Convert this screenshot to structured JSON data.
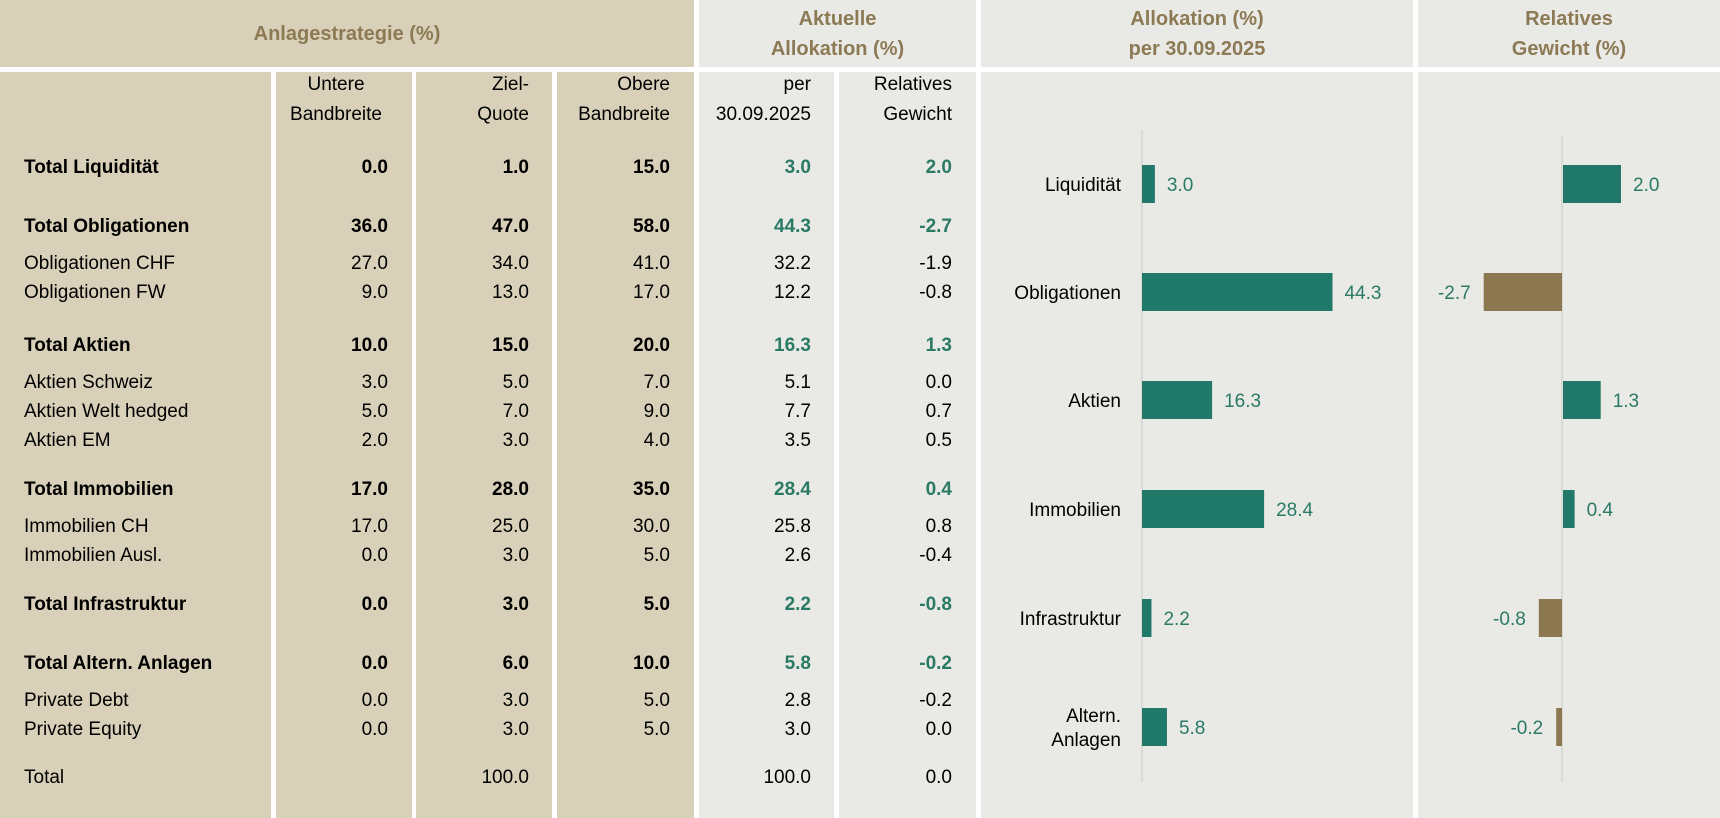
{
  "header": {
    "strategy_title": "Anlagestrategie (%)",
    "current_alloc_title_1": "Aktuelle",
    "current_alloc_title_2": "Allokation (%)",
    "alloc_chart_title_1": "Allokation (%)",
    "alloc_chart_title_2": "per 30.09.2025",
    "rel_chart_title_1": "Relatives",
    "rel_chart_title_2": "Gewicht (%)"
  },
  "columns": {
    "lower": [
      "Untere",
      "Bandbreite"
    ],
    "target": [
      "Ziel-",
      "Quote"
    ],
    "upper": [
      "Obere",
      "Bandbreite"
    ],
    "current": [
      "per",
      "30.09.2025"
    ],
    "relative": [
      "Relatives",
      "Gewicht"
    ]
  },
  "rows": [
    {
      "label": "Total Liquidität",
      "lower": "0.0",
      "target": "1.0",
      "upper": "15.0",
      "current": "3.0",
      "relative": "2.0",
      "total": true
    },
    {
      "label": "Total Obligationen",
      "lower": "36.0",
      "target": "47.0",
      "upper": "58.0",
      "current": "44.3",
      "relative": "-2.7",
      "total": true
    },
    {
      "label": "Obligationen CHF",
      "lower": "27.0",
      "target": "34.0",
      "upper": "41.0",
      "current": "32.2",
      "relative": "-1.9",
      "total": false
    },
    {
      "label": "Obligationen FW",
      "lower": "9.0",
      "target": "13.0",
      "upper": "17.0",
      "current": "12.2",
      "relative": "-0.8",
      "total": false
    },
    {
      "label": "Total Aktien",
      "lower": "10.0",
      "target": "15.0",
      "upper": "20.0",
      "current": "16.3",
      "relative": "1.3",
      "total": true
    },
    {
      "label": "Aktien Schweiz",
      "lower": "3.0",
      "target": "5.0",
      "upper": "7.0",
      "current": "5.1",
      "relative": "0.0",
      "total": false
    },
    {
      "label": "Aktien Welt hedged",
      "lower": "5.0",
      "target": "7.0",
      "upper": "9.0",
      "current": "7.7",
      "relative": "0.7",
      "total": false
    },
    {
      "label": "Aktien EM",
      "lower": "2.0",
      "target": "3.0",
      "upper": "4.0",
      "current": "3.5",
      "relative": "0.5",
      "total": false
    },
    {
      "label": "Total Immobilien",
      "lower": "17.0",
      "target": "28.0",
      "upper": "35.0",
      "current": "28.4",
      "relative": "0.4",
      "total": true
    },
    {
      "label": "Immobilien CH",
      "lower": "17.0",
      "target": "25.0",
      "upper": "30.0",
      "current": "25.8",
      "relative": "0.8",
      "total": false
    },
    {
      "label": "Immobilien Ausl.",
      "lower": "0.0",
      "target": "3.0",
      "upper": "5.0",
      "current": "2.6",
      "relative": "-0.4",
      "total": false
    },
    {
      "label": "Total Infrastruktur",
      "lower": "0.0",
      "target": "3.0",
      "upper": "5.0",
      "current": "2.2",
      "relative": "-0.8",
      "total": true
    },
    {
      "label": "Total Altern. Anlagen",
      "lower": "0.0",
      "target": "6.0",
      "upper": "10.0",
      "current": "5.8",
      "relative": "-0.2",
      "total": true
    },
    {
      "label": "Private Debt",
      "lower": "0.0",
      "target": "3.0",
      "upper": "5.0",
      "current": "2.8",
      "relative": "-0.2",
      "total": false
    },
    {
      "label": "Private Equity",
      "lower": "0.0",
      "target": "3.0",
      "upper": "5.0",
      "current": "3.0",
      "relative": "0.0",
      "total": false
    },
    {
      "label": "Total",
      "lower": "",
      "target": "100.0",
      "upper": "",
      "current": "100.0",
      "relative": "0.0",
      "total": false
    }
  ],
  "colors": {
    "beige": "#d8d0b8",
    "grey": "#e9e9e5",
    "header_text": "#8c7a55",
    "green": "#21796a",
    "green_text": "#2a7a66",
    "brown": "#8c7850"
  },
  "chart_data": [
    {
      "type": "bar",
      "orientation": "horizontal",
      "title": "Allokation (%) per 30.09.2025",
      "categories": [
        "Liquidität",
        "Obligationen",
        "Aktien",
        "Immobilien",
        "Infrastruktur",
        "Altern. Anlagen"
      ],
      "category_lines": [
        [
          "Liquidität"
        ],
        [
          "Obligationen"
        ],
        [
          "Aktien"
        ],
        [
          "Immobilien"
        ],
        [
          "Infrastruktur"
        ],
        [
          "Altern.",
          "Anlagen"
        ]
      ],
      "values": [
        3.0,
        44.3,
        16.3,
        28.4,
        2.2,
        5.8
      ],
      "labels": [
        "3.0",
        "44.3",
        "16.3",
        "28.4",
        "2.2",
        "5.8"
      ],
      "xlim": [
        0,
        60
      ],
      "grid": false
    },
    {
      "type": "bar",
      "orientation": "horizontal",
      "title": "Relatives Gewicht (%)",
      "categories": [
        "Liquidität",
        "Obligationen",
        "Aktien",
        "Immobilien",
        "Infrastruktur",
        "Altern. Anlagen"
      ],
      "values": [
        2.0,
        -2.7,
        1.3,
        0.4,
        -0.8,
        -0.2
      ],
      "labels": [
        "2.0",
        "-2.7",
        "1.3",
        "0.4",
        "-0.8",
        "-0.2"
      ],
      "xlim": [
        -4.5,
        4.5
      ],
      "grid": false
    }
  ]
}
